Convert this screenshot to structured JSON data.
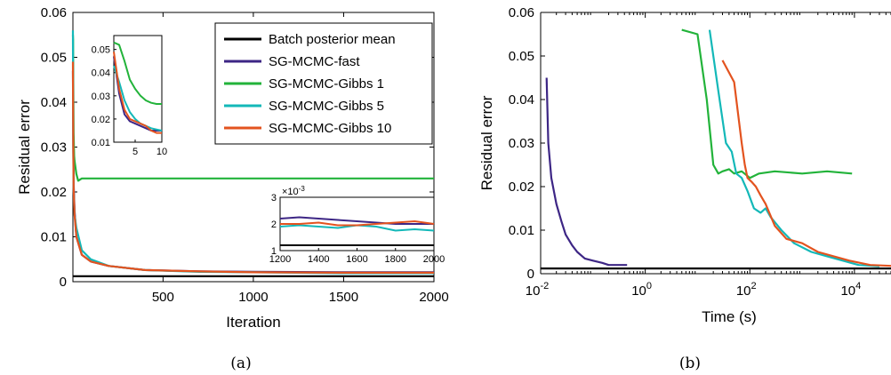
{
  "colors": {
    "batch": "#000000",
    "fast": "#3d2685",
    "gibbs1": "#22b33a",
    "gibbs5": "#13b8b8",
    "gibbs10": "#e3531f"
  },
  "chart_data": [
    {
      "type": "line",
      "panel": "(a)",
      "xlabel": "Iteration",
      "ylabel": "Residual error",
      "xlim": [
        1,
        2000
      ],
      "ylim": [
        0,
        0.06
      ],
      "xticks": [
        "500",
        "1000",
        "1500",
        "2000"
      ],
      "yticks": [
        "0",
        "0.01",
        "0.02",
        "0.03",
        "0.04",
        "0.05",
        "0.06"
      ],
      "legend": {
        "position": "top-right",
        "entries": [
          "Batch posterior mean",
          "SG-MCMC-fast",
          "SG-MCMC-Gibbs 1",
          "SG-MCMC-Gibbs 5",
          "SG-MCMC-Gibbs 10"
        ]
      },
      "series": [
        {
          "name": "Batch posterior mean",
          "x": [
            1,
            2000
          ],
          "y": [
            0.0012,
            0.0012
          ]
        },
        {
          "name": "SG-MCMC-fast",
          "x": [
            1,
            3,
            5,
            10,
            20,
            50,
            100,
            200,
            400,
            700,
            1000,
            1500,
            2000
          ],
          "y": [
            0.047,
            0.032,
            0.022,
            0.016,
            0.01,
            0.006,
            0.0045,
            0.0035,
            0.0026,
            0.0023,
            0.0022,
            0.0021,
            0.0021
          ]
        },
        {
          "name": "SG-MCMC-Gibbs 1",
          "x": [
            1,
            2,
            3,
            5,
            8,
            10,
            20,
            30,
            50,
            100,
            200,
            400,
            700,
            1000,
            1500,
            2000
          ],
          "y": [
            0.055,
            0.054,
            0.045,
            0.033,
            0.028,
            0.027,
            0.024,
            0.0225,
            0.023,
            0.023,
            0.023,
            0.023,
            0.023,
            0.023,
            0.023,
            0.023
          ]
        },
        {
          "name": "SG-MCMC-Gibbs 5",
          "x": [
            1,
            3,
            5,
            10,
            20,
            50,
            100,
            200,
            400,
            700,
            1000,
            1500,
            2000
          ],
          "y": [
            0.056,
            0.03,
            0.021,
            0.015,
            0.012,
            0.007,
            0.005,
            0.0035,
            0.0026,
            0.0022,
            0.0021,
            0.0019,
            0.0019
          ]
        },
        {
          "name": "SG-MCMC-Gibbs 10",
          "x": [
            1,
            3,
            5,
            10,
            20,
            50,
            100,
            200,
            400,
            700,
            1000,
            1500,
            2000
          ],
          "y": [
            0.049,
            0.03,
            0.021,
            0.015,
            0.01,
            0.006,
            0.0045,
            0.0035,
            0.0026,
            0.0023,
            0.0021,
            0.002,
            0.002
          ]
        }
      ],
      "insets": [
        {
          "location": "top-left",
          "xlim": [
            1,
            10
          ],
          "ylim": [
            0.01,
            0.056
          ],
          "xticks": [
            "5",
            "10"
          ],
          "yticks": [
            "0.01",
            "0.02",
            "0.03",
            "0.04",
            "0.05"
          ],
          "series": [
            {
              "name": "SG-MCMC-fast",
              "x": [
                1,
                2,
                3,
                4,
                5,
                6,
                7,
                8,
                9,
                10
              ],
              "y": [
                0.047,
                0.031,
                0.022,
                0.019,
                0.018,
                0.017,
                0.016,
                0.015,
                0.015,
                0.015
              ]
            },
            {
              "name": "SG-MCMC-Gibbs 1",
              "x": [
                1,
                2,
                3,
                4,
                5,
                6,
                7,
                8,
                9,
                10
              ],
              "y": [
                0.053,
                0.052,
                0.045,
                0.037,
                0.033,
                0.03,
                0.028,
                0.027,
                0.0265,
                0.0265
              ]
            },
            {
              "name": "SG-MCMC-Gibbs 5",
              "x": [
                1,
                2,
                3,
                4,
                5,
                6,
                7,
                8,
                9,
                10
              ],
              "y": [
                0.043,
                0.036,
                0.028,
                0.023,
                0.02,
                0.018,
                0.017,
                0.016,
                0.0155,
                0.015
              ]
            },
            {
              "name": "SG-MCMC-Gibbs 10",
              "x": [
                1,
                2,
                3,
                4,
                5,
                6,
                7,
                8,
                9,
                10
              ],
              "y": [
                0.049,
                0.033,
                0.024,
                0.02,
                0.019,
                0.018,
                0.017,
                0.015,
                0.014,
                0.014
              ]
            }
          ]
        },
        {
          "location": "right",
          "xlim": [
            1200,
            2000
          ],
          "ylim": [
            1,
            3
          ],
          "exponent_label": "×10",
          "exponent": "-3",
          "xticks": [
            "1200",
            "1400",
            "1600",
            "1800",
            "2000"
          ],
          "yticks": [
            "1",
            "2",
            "3"
          ],
          "series": [
            {
              "name": "Batch posterior mean",
              "x": [
                1200,
                2000
              ],
              "y": [
                1.2,
                1.2
              ]
            },
            {
              "name": "SG-MCMC-fast",
              "x": [
                1200,
                1300,
                1400,
                1500,
                1600,
                1700,
                1800,
                1900,
                2000
              ],
              "y": [
                2.2,
                2.25,
                2.2,
                2.15,
                2.1,
                2.05,
                2.0,
                2.0,
                2.0
              ]
            },
            {
              "name": "SG-MCMC-Gibbs 5",
              "x": [
                1200,
                1300,
                1400,
                1500,
                1600,
                1700,
                1800,
                1900,
                2000
              ],
              "y": [
                1.9,
                1.95,
                1.9,
                1.85,
                1.95,
                1.9,
                1.75,
                1.8,
                1.75
              ]
            },
            {
              "name": "SG-MCMC-Gibbs 10",
              "x": [
                1200,
                1300,
                1400,
                1500,
                1600,
                1700,
                1800,
                1900,
                2000
              ],
              "y": [
                2.0,
                2.0,
                2.05,
                1.95,
                1.95,
                2.0,
                2.05,
                2.1,
                2.0
              ]
            }
          ]
        }
      ]
    },
    {
      "type": "line",
      "panel": "(b)",
      "xlabel": "Time (s)",
      "ylabel": "Residual error",
      "xscale": "log",
      "xlim": [
        0.01,
        50000
      ],
      "ylim": [
        0,
        0.06
      ],
      "xticks": [
        {
          "base": "10",
          "exp": "-2",
          "value": 0.01
        },
        {
          "base": "10",
          "exp": "0",
          "value": 1
        },
        {
          "base": "10",
          "exp": "2",
          "value": 100
        },
        {
          "base": "10",
          "exp": "4",
          "value": 10000
        }
      ],
      "yticks": [
        "0",
        "0.01",
        "0.02",
        "0.03",
        "0.04",
        "0.05",
        "0.06"
      ],
      "series": [
        {
          "name": "Batch posterior mean",
          "x": [
            0.01,
            50000
          ],
          "y": [
            0.0012,
            0.0012
          ]
        },
        {
          "name": "SG-MCMC-fast",
          "x": [
            0.013,
            0.014,
            0.016,
            0.02,
            0.025,
            0.03,
            0.04,
            0.05,
            0.07,
            0.1,
            0.15,
            0.2,
            0.3,
            0.45
          ],
          "y": [
            0.045,
            0.03,
            0.022,
            0.016,
            0.012,
            0.009,
            0.0065,
            0.005,
            0.0035,
            0.003,
            0.0025,
            0.002,
            0.002,
            0.002
          ]
        },
        {
          "name": "SG-MCMC-Gibbs 1",
          "x": [
            5,
            10,
            15,
            20,
            25,
            30,
            40,
            50,
            70,
            100,
            150,
            300,
            1000,
            3000,
            9000
          ],
          "y": [
            0.056,
            0.055,
            0.04,
            0.025,
            0.023,
            0.0235,
            0.024,
            0.023,
            0.0235,
            0.022,
            0.023,
            0.0235,
            0.023,
            0.0235,
            0.023
          ]
        },
        {
          "name": "SG-MCMC-Gibbs 5",
          "x": [
            17,
            25,
            35,
            45,
            55,
            70,
            90,
            120,
            160,
            200,
            250,
            400,
            700,
            1500,
            3000,
            6000,
            12000,
            30000
          ],
          "y": [
            0.056,
            0.042,
            0.03,
            0.028,
            0.023,
            0.022,
            0.019,
            0.015,
            0.014,
            0.015,
            0.013,
            0.01,
            0.007,
            0.005,
            0.004,
            0.003,
            0.002,
            0.0017
          ]
        },
        {
          "name": "SG-MCMC-Gibbs 10",
          "x": [
            30,
            50,
            70,
            80,
            90,
            110,
            130,
            160,
            200,
            300,
            500,
            1000,
            2000,
            4000,
            8000,
            20000,
            50000
          ],
          "y": [
            0.049,
            0.044,
            0.03,
            0.025,
            0.022,
            0.021,
            0.02,
            0.018,
            0.016,
            0.011,
            0.008,
            0.007,
            0.005,
            0.004,
            0.003,
            0.002,
            0.0018
          ]
        }
      ]
    }
  ]
}
